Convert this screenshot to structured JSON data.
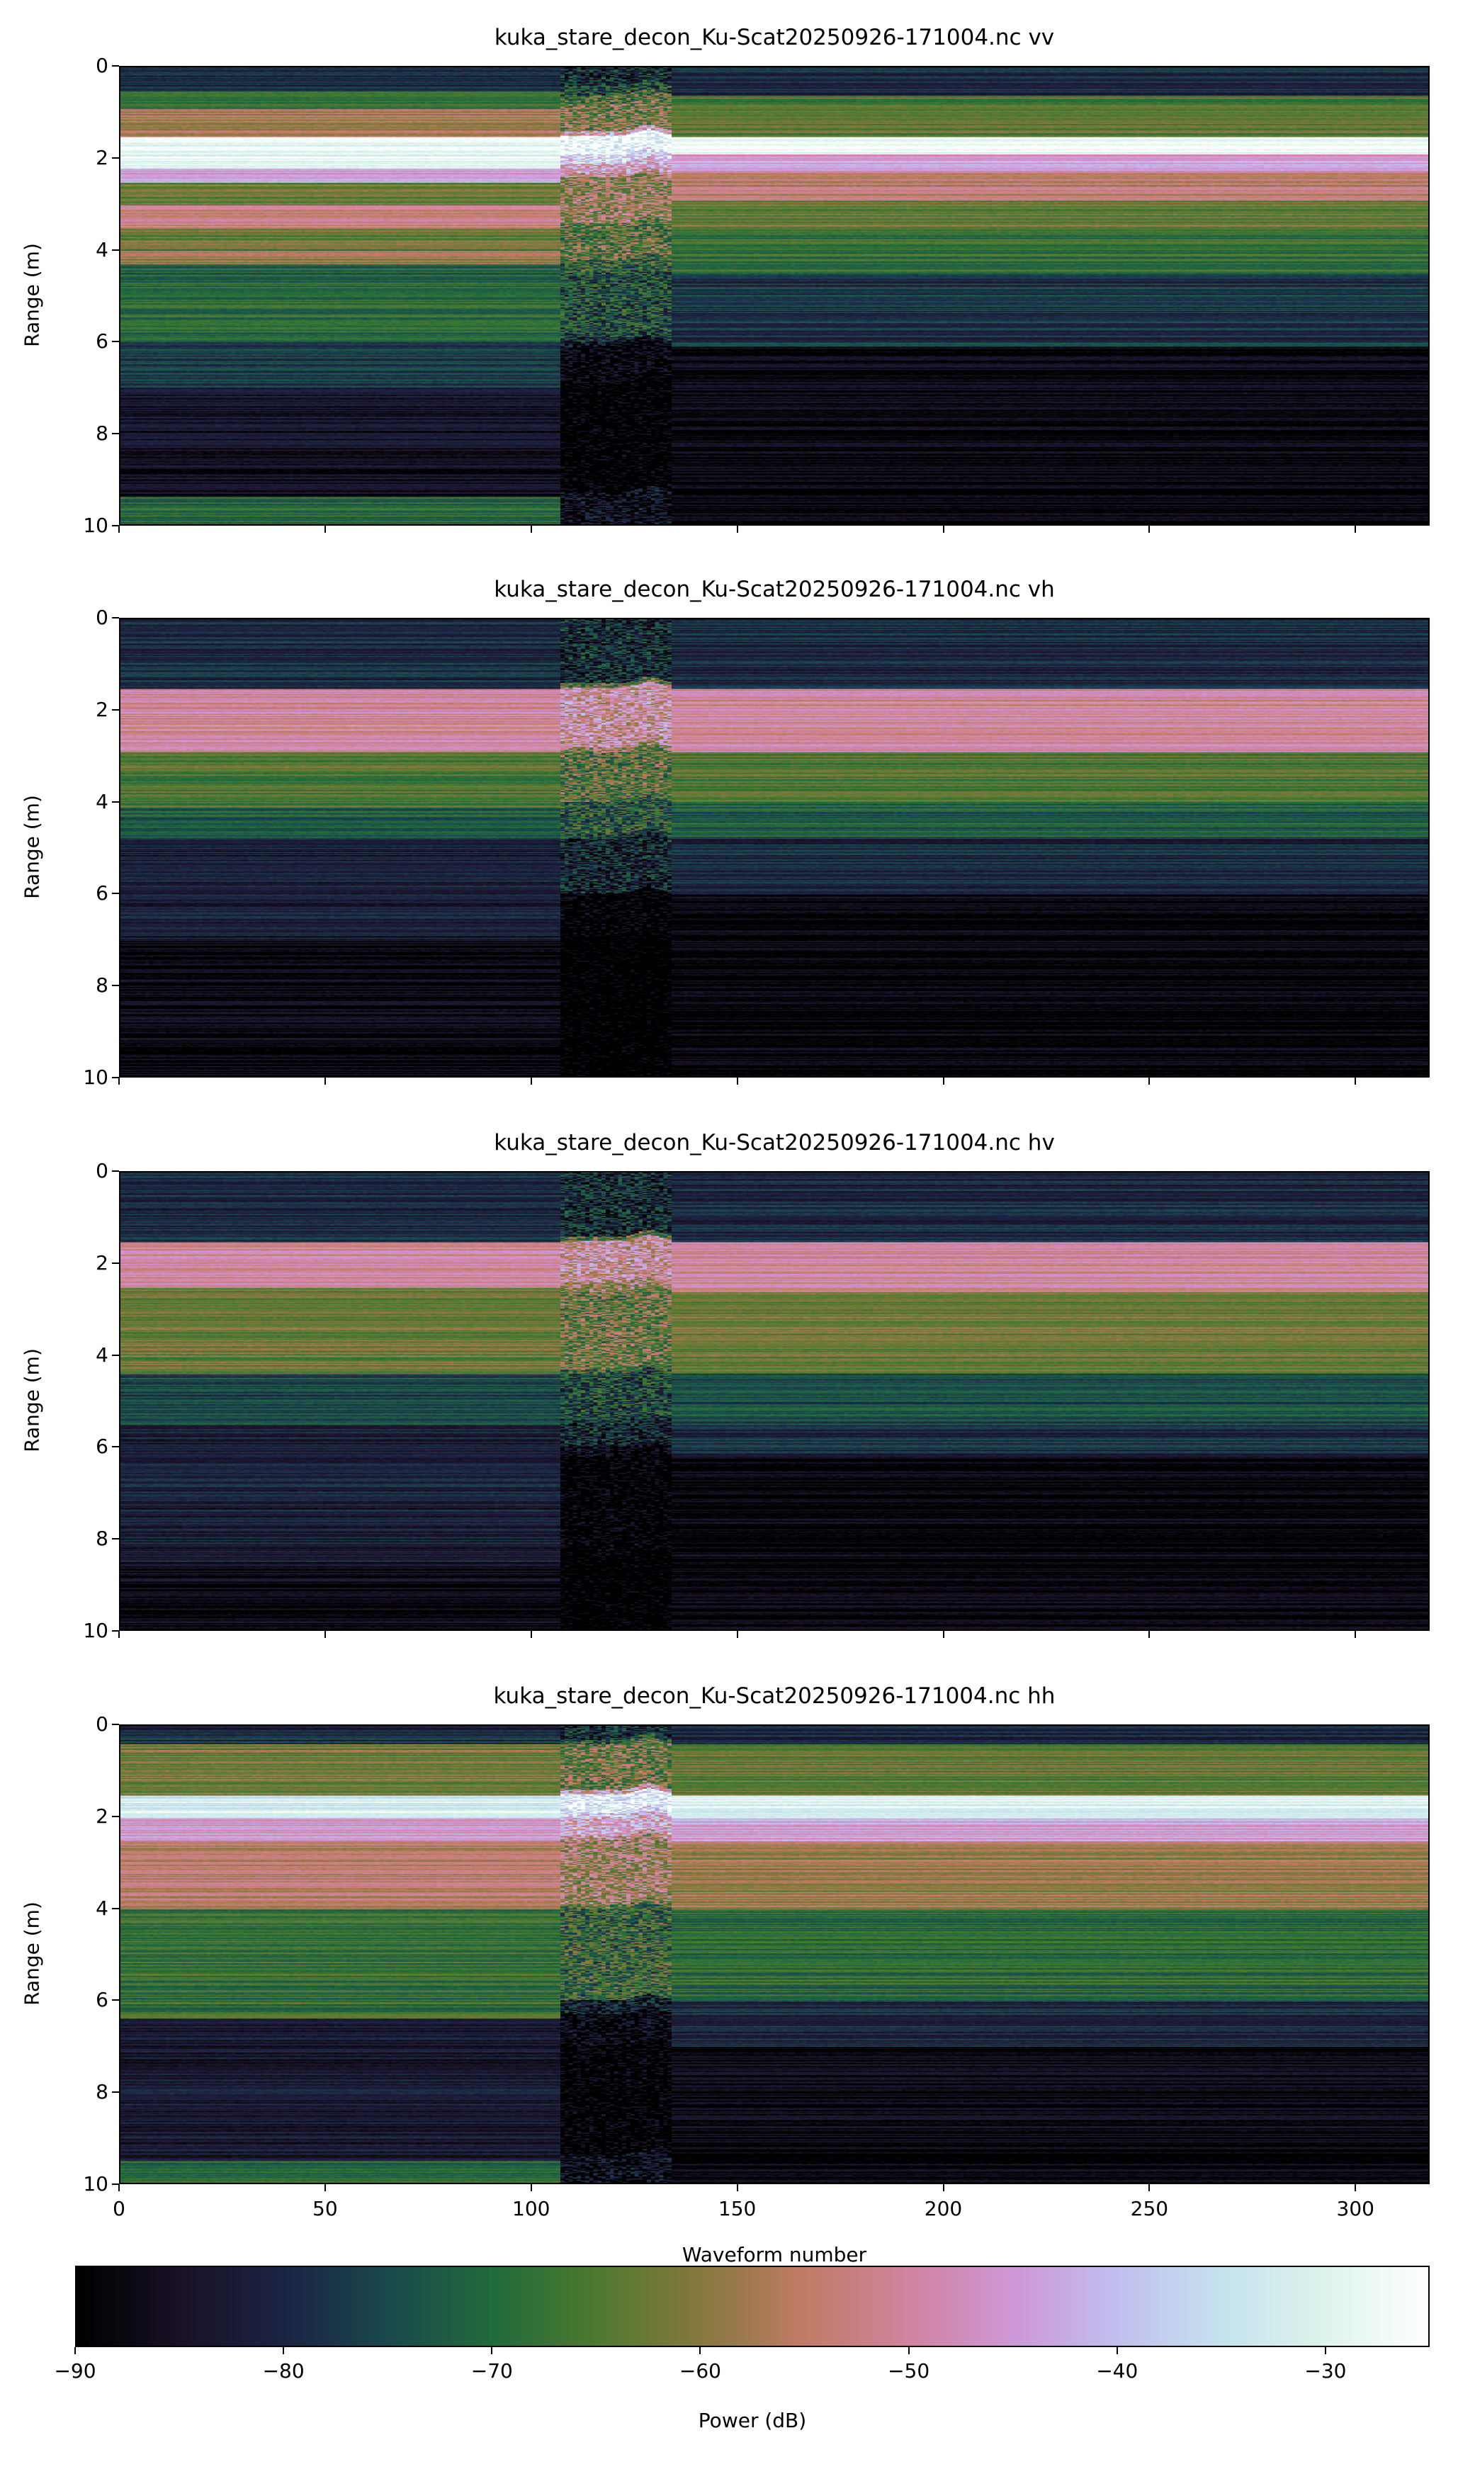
{
  "chart_data": {
    "type": "heatmap",
    "xlabel": "Waveform number",
    "ylabel": "Range (m)",
    "xlim": [
      0,
      318
    ],
    "ylim": [
      10,
      0
    ],
    "xticks": [
      "0",
      "50",
      "100",
      "150",
      "200",
      "250",
      "300"
    ],
    "yticks": [
      "0",
      "2",
      "4",
      "6",
      "8",
      "10"
    ],
    "colorbar": {
      "label": "Power (dB)",
      "range": [
        -90,
        -25
      ],
      "ticks": [
        "−90",
        "−80",
        "−70",
        "−60",
        "−50",
        "−40",
        "−30"
      ],
      "colormap": "cubehelix",
      "stops": [
        [
          -90,
          "#000000"
        ],
        [
          -85,
          "#1a1228"
        ],
        [
          -80,
          "#1c2444"
        ],
        [
          -75,
          "#1a4a4e"
        ],
        [
          -70,
          "#216b3c"
        ],
        [
          -65,
          "#4f7a2f"
        ],
        [
          -60,
          "#86783e"
        ],
        [
          -55,
          "#c27c66"
        ],
        [
          -50,
          "#d0849f"
        ],
        [
          -45,
          "#cf97d7"
        ],
        [
          -40,
          "#c2bff0"
        ],
        [
          -35,
          "#c5e2ee"
        ],
        [
          -30,
          "#def4ec"
        ],
        [
          -25,
          "#ffffff"
        ]
      ]
    },
    "disturbed_waveforms": [
      107,
      133
    ],
    "panels": [
      {
        "title": "kuka_stare_decon_Ku-Scat20250926-171004.nc vv",
        "left_profile": [
          [
            0.5,
            -80
          ],
          [
            0.9,
            -68
          ],
          [
            1.5,
            -57
          ],
          [
            2.2,
            -28
          ],
          [
            2.5,
            -45
          ],
          [
            3.0,
            -62
          ],
          [
            3.5,
            -52
          ],
          [
            4.0,
            -63
          ],
          [
            4.3,
            -58
          ],
          [
            6.0,
            -70
          ],
          [
            7.0,
            -77
          ],
          [
            9.4,
            -85
          ],
          [
            10,
            -70
          ]
        ],
        "right_profile": [
          [
            0.6,
            -80
          ],
          [
            1.5,
            -65
          ],
          [
            1.9,
            -27
          ],
          [
            2.3,
            -45
          ],
          [
            2.9,
            -55
          ],
          [
            3.5,
            -63
          ],
          [
            4.5,
            -68
          ],
          [
            6.1,
            -78
          ],
          [
            10,
            -88
          ]
        ]
      },
      {
        "title": "kuka_stare_decon_Ku-Scat20250926-171004.nc vh",
        "left_profile": [
          [
            1.5,
            -80
          ],
          [
            2.9,
            -50
          ],
          [
            4.1,
            -65
          ],
          [
            4.8,
            -72
          ],
          [
            7.0,
            -82
          ],
          [
            10,
            -88
          ]
        ],
        "right_profile": [
          [
            1.5,
            -80
          ],
          [
            2.9,
            -50
          ],
          [
            4.0,
            -65
          ],
          [
            4.8,
            -72
          ],
          [
            6.0,
            -80
          ],
          [
            10,
            -89
          ]
        ]
      },
      {
        "title": "kuka_stare_decon_Ku-Scat20250926-171004.nc hv",
        "left_profile": [
          [
            1.5,
            -80
          ],
          [
            2.5,
            -50
          ],
          [
            4.4,
            -63
          ],
          [
            5.5,
            -75
          ],
          [
            8.5,
            -82
          ],
          [
            10,
            -87
          ]
        ],
        "right_profile": [
          [
            1.5,
            -80
          ],
          [
            2.6,
            -50
          ],
          [
            4.4,
            -63
          ],
          [
            5.5,
            -75
          ],
          [
            6.2,
            -80
          ],
          [
            10,
            -89
          ]
        ]
      },
      {
        "title": "kuka_stare_decon_Ku-Scat20250926-171004.nc hh",
        "left_profile": [
          [
            0.4,
            -80
          ],
          [
            1.5,
            -62
          ],
          [
            2.0,
            -32
          ],
          [
            2.5,
            -45
          ],
          [
            4.0,
            -55
          ],
          [
            6.4,
            -68
          ],
          [
            9.5,
            -83
          ],
          [
            10,
            -70
          ]
        ],
        "right_profile": [
          [
            0.4,
            -80
          ],
          [
            1.5,
            -63
          ],
          [
            2.0,
            -30
          ],
          [
            2.5,
            -45
          ],
          [
            4.0,
            -58
          ],
          [
            6.0,
            -70
          ],
          [
            7.0,
            -80
          ],
          [
            10,
            -88
          ]
        ]
      }
    ]
  }
}
